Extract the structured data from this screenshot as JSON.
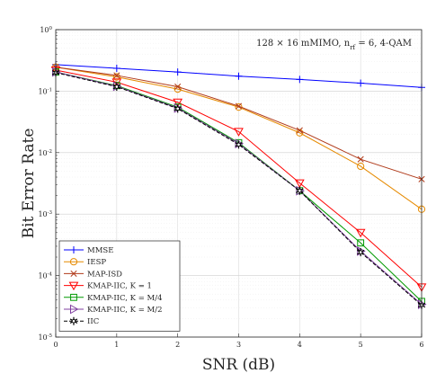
{
  "chart_data": {
    "type": "line",
    "title": "",
    "xlabel": "SNR (dB)",
    "ylabel": "Bit Error Rate",
    "x": [
      0,
      1,
      2,
      3,
      4,
      5,
      6
    ],
    "xlim": [
      0,
      6
    ],
    "xticks": [
      "0",
      "1",
      "2",
      "3",
      "4",
      "5",
      "6"
    ],
    "yscale": "log",
    "ylim": [
      1e-05,
      1
    ],
    "yticks": [
      {
        "value": 1,
        "base": "10",
        "exp": "0"
      },
      {
        "value": 0.1,
        "base": "10",
        "exp": "-1"
      },
      {
        "value": 0.01,
        "base": "10",
        "exp": "-2"
      },
      {
        "value": 0.001,
        "base": "10",
        "exp": "-3"
      },
      {
        "value": 0.0001,
        "base": "10",
        "exp": "-4"
      },
      {
        "value": 1e-05,
        "base": "10",
        "exp": "-5"
      }
    ],
    "grid": true,
    "annotation": "128 × 16 mMIMO, n",
    "annotation_sub": "rf",
    "annotation_tail": " = 6, 4-QAM",
    "legend_position": "bottom-left",
    "series": [
      {
        "name": "MMSE",
        "color": "#0000ff",
        "marker": "plus",
        "dash": "solid",
        "values": [
          0.27,
          0.235,
          0.205,
          0.175,
          0.155,
          0.135,
          0.115
        ]
      },
      {
        "name": "IESP",
        "color": "#e68a00",
        "marker": "circle",
        "dash": "solid",
        "values": [
          0.245,
          0.17,
          0.108,
          0.055,
          0.021,
          0.006,
          0.0012
        ]
      },
      {
        "name": "MAP-ISD",
        "color": "#b03a1a",
        "marker": "x",
        "dash": "solid",
        "values": [
          0.245,
          0.18,
          0.118,
          0.057,
          0.023,
          0.0078,
          0.0037
        ]
      },
      {
        "name": "KMAP-IIC, K = 1",
        "color": "#ff0000",
        "marker": "triangle-down",
        "dash": "solid",
        "values": [
          0.22,
          0.14,
          0.066,
          0.022,
          0.0032,
          0.0005,
          6.5e-05
        ]
      },
      {
        "name": "KMAP-IIC, K = M/4",
        "color": "#009900",
        "marker": "square",
        "dash": "solid",
        "values": [
          0.205,
          0.123,
          0.055,
          0.0145,
          0.0024,
          0.00034,
          3.8e-05
        ]
      },
      {
        "name": "KMAP-IIC, K = M/2",
        "color": "#8040a0",
        "marker": "triangle-right",
        "dash": "solid",
        "values": [
          0.205,
          0.12,
          0.053,
          0.014,
          0.0024,
          0.00025,
          3.4e-05
        ]
      },
      {
        "name": "IIC",
        "color": "#000000",
        "marker": "star",
        "dash": "dashed",
        "values": [
          0.2,
          0.118,
          0.052,
          0.0135,
          0.0024,
          0.00024,
          3.3e-05
        ]
      }
    ]
  }
}
